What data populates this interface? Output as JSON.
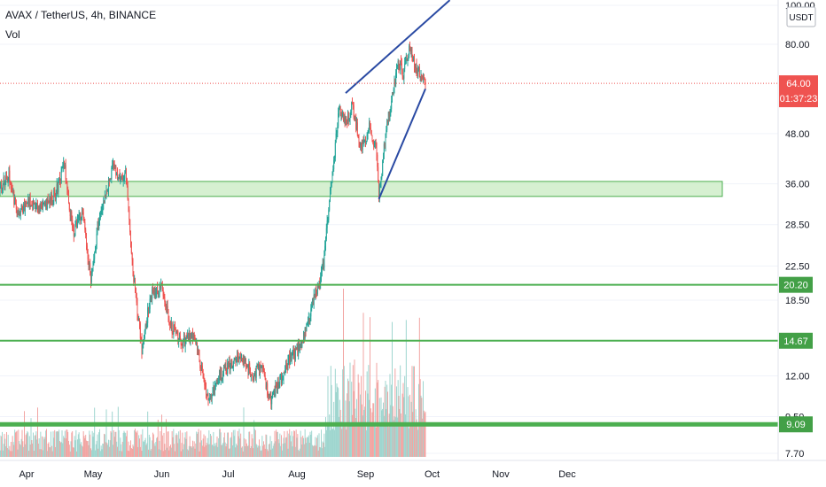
{
  "header": {
    "title": "AVAX / TetherUS, 4h, BINANCE",
    "volume_label": "Vol"
  },
  "price_axis": {
    "currency": "USDT",
    "current_price": "64.00",
    "countdown": "01:37:23"
  },
  "colors": {
    "up": "#26a69a",
    "down": "#ef5350",
    "vol_up": "#9fd6cf",
    "vol_down": "#f2a5a3",
    "support": "#4caf50",
    "wedge": "#2a4aa3",
    "zone_fill": "#c8ebc1",
    "zone_border": "#4caf50",
    "price_badge": "#ef5350",
    "level_badge": "#43a047"
  },
  "chart_data": {
    "type": "candlestick",
    "symbol": "AVAX/USDT",
    "timeframe": "4h",
    "exchange": "BINANCE",
    "price_scale": "log",
    "x_ticks": [
      "Apr",
      "May",
      "Jun",
      "Jul",
      "Aug",
      "Sep",
      "Oct",
      "Nov",
      "Dec"
    ],
    "y_ticks": [
      "100.00",
      "80.00",
      "48.00",
      "36.00",
      "28.50",
      "22.50",
      "18.50",
      "12.00",
      "9.50",
      "7.70"
    ],
    "y_tick_values": [
      100,
      80,
      48,
      36,
      28.5,
      22.5,
      18.5,
      12,
      9.5,
      7.7
    ],
    "close_path": [
      {
        "date": "2021-03-20",
        "price": 35
      },
      {
        "date": "2021-03-24",
        "price": 38
      },
      {
        "date": "2021-03-28",
        "price": 30
      },
      {
        "date": "2021-04-02",
        "price": 33
      },
      {
        "date": "2021-04-08",
        "price": 31
      },
      {
        "date": "2021-04-14",
        "price": 34
      },
      {
        "date": "2021-04-18",
        "price": 40
      },
      {
        "date": "2021-04-22",
        "price": 27
      },
      {
        "date": "2021-04-26",
        "price": 31
      },
      {
        "date": "2021-04-30",
        "price": 21
      },
      {
        "date": "2021-05-03",
        "price": 28
      },
      {
        "date": "2021-05-06",
        "price": 33
      },
      {
        "date": "2021-05-10",
        "price": 40
      },
      {
        "date": "2021-05-14",
        "price": 36
      },
      {
        "date": "2021-05-16",
        "price": 38
      },
      {
        "date": "2021-05-19",
        "price": 22
      },
      {
        "date": "2021-05-23",
        "price": 14
      },
      {
        "date": "2021-05-27",
        "price": 19
      },
      {
        "date": "2021-06-01",
        "price": 20
      },
      {
        "date": "2021-06-05",
        "price": 16
      },
      {
        "date": "2021-06-10",
        "price": 14.5
      },
      {
        "date": "2021-06-15",
        "price": 15.2
      },
      {
        "date": "2021-06-19",
        "price": 12.5
      },
      {
        "date": "2021-06-22",
        "price": 10.2
      },
      {
        "date": "2021-06-27",
        "price": 12
      },
      {
        "date": "2021-07-02",
        "price": 12.8
      },
      {
        "date": "2021-07-07",
        "price": 13.5
      },
      {
        "date": "2021-07-12",
        "price": 12
      },
      {
        "date": "2021-07-16",
        "price": 12.6
      },
      {
        "date": "2021-07-20",
        "price": 10.4
      },
      {
        "date": "2021-07-24",
        "price": 11.5
      },
      {
        "date": "2021-07-28",
        "price": 13
      },
      {
        "date": "2021-08-02",
        "price": 14
      },
      {
        "date": "2021-08-06",
        "price": 16
      },
      {
        "date": "2021-08-09",
        "price": 19
      },
      {
        "date": "2021-08-13",
        "price": 22.5
      },
      {
        "date": "2021-08-16",
        "price": 34
      },
      {
        "date": "2021-08-20",
        "price": 55
      },
      {
        "date": "2021-08-23",
        "price": 51
      },
      {
        "date": "2021-08-26",
        "price": 56
      },
      {
        "date": "2021-08-30",
        "price": 44
      },
      {
        "date": "2021-09-03",
        "price": 50
      },
      {
        "date": "2021-09-06",
        "price": 43
      },
      {
        "date": "2021-09-07",
        "price": 33
      },
      {
        "date": "2021-09-10",
        "price": 48
      },
      {
        "date": "2021-09-13",
        "price": 60
      },
      {
        "date": "2021-09-16",
        "price": 72
      },
      {
        "date": "2021-09-18",
        "price": 68
      },
      {
        "date": "2021-09-21",
        "price": 78
      },
      {
        "date": "2021-09-24",
        "price": 70
      },
      {
        "date": "2021-09-28",
        "price": 64
      }
    ],
    "support_levels": [
      20.2,
      14.67,
      9.09
    ],
    "support_zone": {
      "low": 33.5,
      "high": 36.5,
      "start": "2021-03-20",
      "end": "2021-12-31"
    },
    "rising_wedge": {
      "upper": [
        {
          "date": "2021-08-23",
          "price": 60.5
        },
        {
          "date": "2021-10-09",
          "price": 103
        }
      ],
      "lower": [
        {
          "date": "2021-09-07",
          "price": 33
        },
        {
          "date": "2021-09-28",
          "price": 62
        }
      ]
    },
    "last_price": 64.0
  }
}
